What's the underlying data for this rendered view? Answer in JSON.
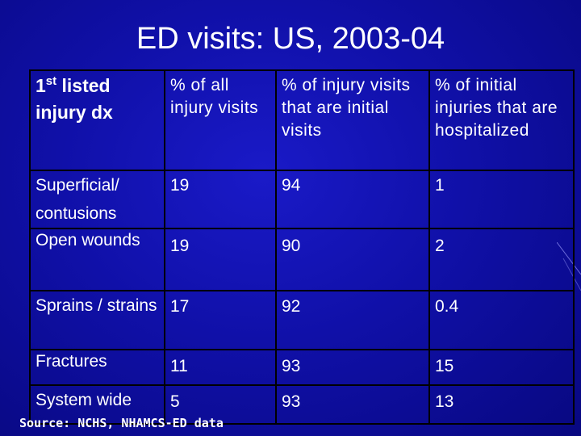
{
  "slide": {
    "title": "ED visits: US, 2003-04",
    "source": "Source: NCHS, NHAMCS-ED data"
  },
  "table": {
    "headers": {
      "dx_prefix": "1",
      "dx_sup": "st",
      "dx_rest": " listed injury dx",
      "pct_all": "% of all injury visits",
      "pct_initial": "% of injury visits that are initial visits",
      "pct_hosp": "% of initial injuries that are hospitalized"
    },
    "rows": [
      {
        "dx": "Superficial/ contusions",
        "pct_all": "19",
        "pct_initial": "94",
        "pct_hosp": "1"
      },
      {
        "dx": "Open wounds",
        "pct_all": "19",
        "pct_initial": "90",
        "pct_hosp": "2"
      },
      {
        "dx": "Sprains / strains",
        "pct_all": "17",
        "pct_initial": "92",
        "pct_hosp": "0.4"
      },
      {
        "dx": "Fractures",
        "pct_all": "11",
        "pct_initial": "93",
        "pct_hosp": "15"
      },
      {
        "dx": "System wide",
        "pct_all": "5",
        "pct_initial": "93",
        "pct_hosp": "13"
      }
    ]
  }
}
